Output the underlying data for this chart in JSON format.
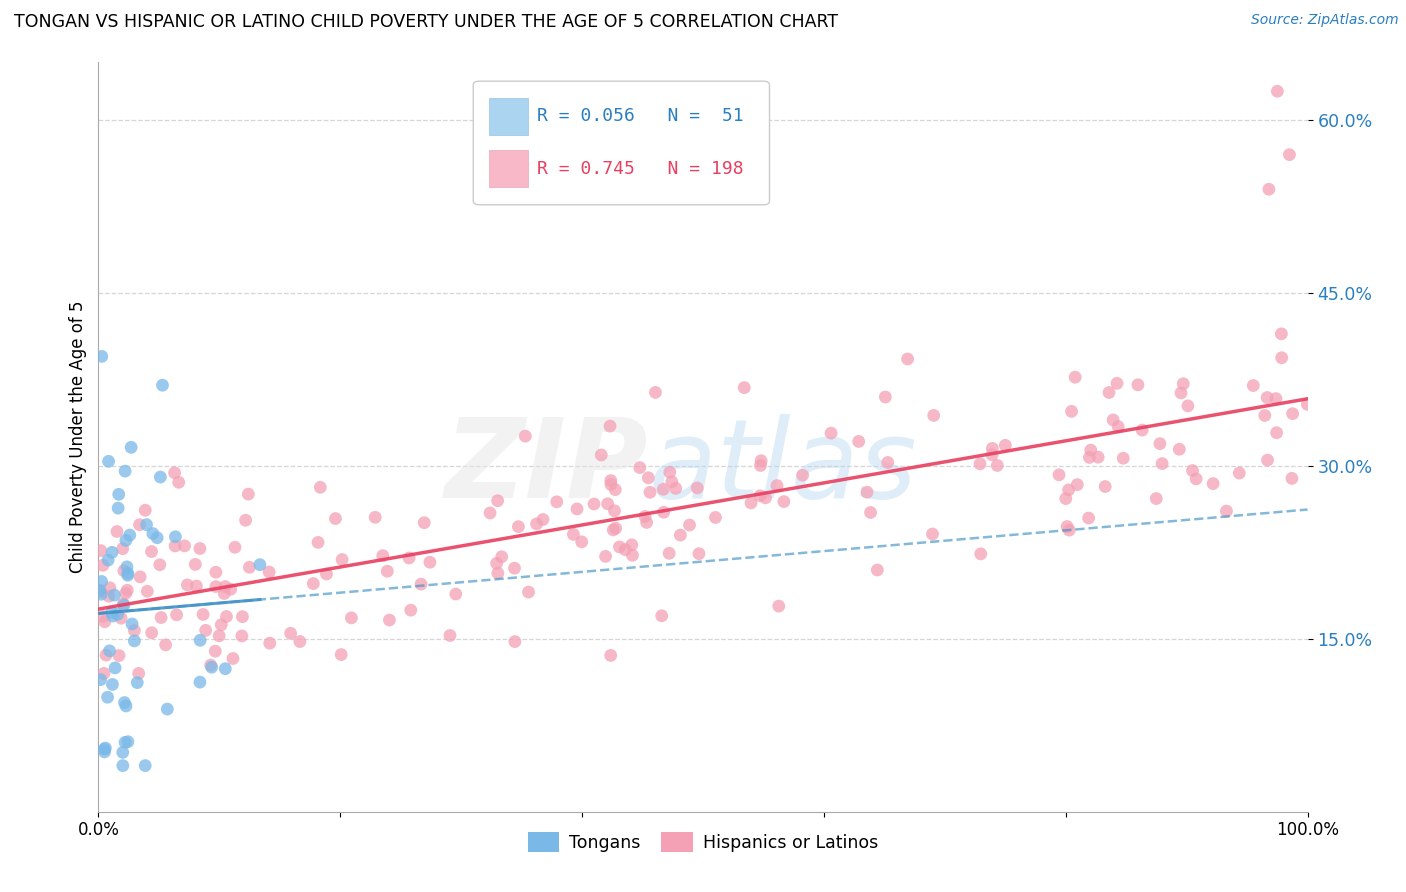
{
  "title": "TONGAN VS HISPANIC OR LATINO CHILD POVERTY UNDER THE AGE OF 5 CORRELATION CHART",
  "source": "Source: ZipAtlas.com",
  "ylabel": "Child Poverty Under the Age of 5",
  "legend_label1": "Tongans",
  "legend_label2": "Hispanics or Latinos",
  "R1": 0.056,
  "N1": 51,
  "R2": 0.745,
  "N2": 198,
  "color_tongans": "#7ab8e8",
  "color_hispanics": "#f4a0b5",
  "color_tongans_line": "#4292c6",
  "color_hispanics_line": "#e84060",
  "background_color": "#ffffff",
  "grid_color": "#cccccc",
  "xlim": [
    0.0,
    1.0
  ],
  "ylim": [
    0.0,
    0.65
  ],
  "ytick_values": [
    0.15,
    0.3,
    0.45,
    0.6
  ],
  "ytick_labels": [
    "15.0%",
    "30.0%",
    "45.0%",
    "60.0%"
  ],
  "xtick_values": [
    0.0,
    0.2,
    0.4,
    0.6,
    0.8,
    1.0
  ],
  "xtick_labels": [
    "0.0%",
    "",
    "",
    "",
    "",
    "100.0%"
  ]
}
